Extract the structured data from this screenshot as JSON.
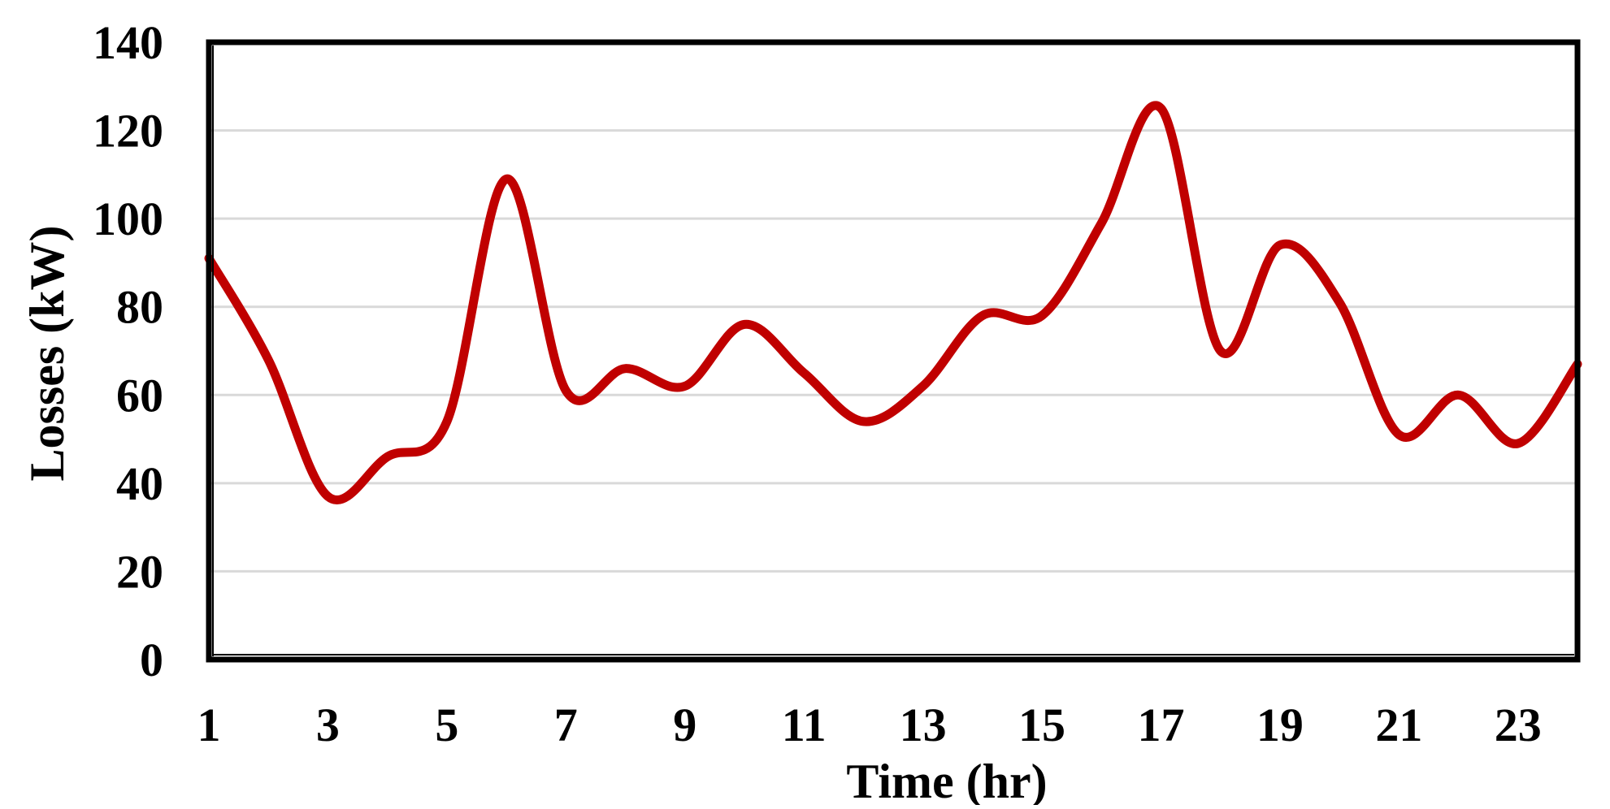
{
  "chart_data": {
    "type": "line",
    "title": "",
    "xlabel": "Time (hr)",
    "ylabel": "Losses (kW)",
    "xlim": [
      1,
      24
    ],
    "ylim": [
      0,
      140
    ],
    "x_ticks": [
      "1",
      "3",
      "5",
      "7",
      "9",
      "11",
      "13",
      "15",
      "17",
      "19",
      "21",
      "23"
    ],
    "y_ticks": [
      "0",
      "20",
      "40",
      "60",
      "80",
      "100",
      "120",
      "140"
    ],
    "grid": true,
    "legend": "none",
    "smooth": true,
    "x": [
      1,
      2,
      3,
      4,
      5,
      6,
      7,
      8,
      9,
      10,
      11,
      12,
      13,
      14,
      15,
      16,
      17,
      18,
      19,
      20,
      21,
      22,
      23,
      24
    ],
    "series": [
      {
        "color": "#C00000",
        "values": [
          91,
          68,
          37,
          46,
          54,
          109,
          61,
          66,
          62,
          76,
          65,
          54,
          62,
          78,
          78,
          99,
          125,
          70,
          94,
          81,
          51,
          60,
          49,
          67
        ]
      }
    ]
  }
}
